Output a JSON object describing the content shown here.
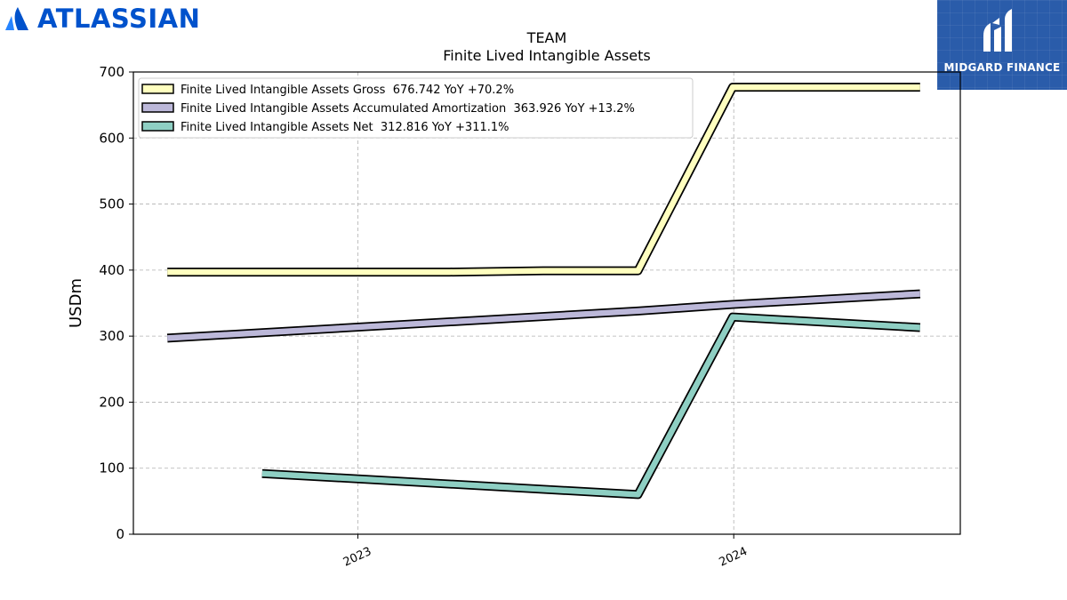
{
  "brand": {
    "left_logo_text": "ATLASSIAN",
    "right_logo_text": "MIDGARD FINANCE"
  },
  "colors": {
    "atlassian_blue": "#0052cc",
    "midgard_blue": "#2a5caa",
    "gross": "#ffffbf",
    "amortization": "#bcb8d9",
    "net": "#8ecfc3",
    "outline": "#000000"
  },
  "chart_data": {
    "type": "line",
    "title": "TEAM",
    "subtitle": "Finite Lived Intangible Assets",
    "xlabel": "",
    "ylabel": "USDm",
    "ylim": [
      0,
      700
    ],
    "yticks": [
      0,
      100,
      200,
      300,
      400,
      500,
      600,
      700
    ],
    "xlim": [
      "2022-05-28",
      "2024-08-08"
    ],
    "xticks": [
      {
        "label": "2023",
        "date": "2023-01-01"
      },
      {
        "label": "2024",
        "date": "2024-01-01"
      }
    ],
    "grid": true,
    "legend_position": "top-left",
    "series": [
      {
        "name": "Finite Lived Intangible Assets Gross",
        "legend": "Finite Lived Intangible Assets Gross  676.742 YoY +70.2%",
        "color": "#ffffbf",
        "points": [
          {
            "x": "2022-06-30",
            "y": 397
          },
          {
            "x": "2023-03-31",
            "y": 397
          },
          {
            "x": "2023-06-30",
            "y": 399
          },
          {
            "x": "2023-09-30",
            "y": 399
          },
          {
            "x": "2023-12-31",
            "y": 677
          },
          {
            "x": "2024-06-30",
            "y": 677
          }
        ]
      },
      {
        "name": "Finite Lived Intangible Assets Accumulated Amortization",
        "legend": "Finite Lived Intangible Assets Accumulated Amortization  363.926 YoY +13.2%",
        "color": "#bcb8d9",
        "points": [
          {
            "x": "2022-06-30",
            "y": 297
          },
          {
            "x": "2023-09-30",
            "y": 338
          },
          {
            "x": "2023-12-31",
            "y": 348
          },
          {
            "x": "2024-06-30",
            "y": 364
          }
        ]
      },
      {
        "name": "Finite Lived Intangible Assets Net",
        "legend": "Finite Lived Intangible Assets Net  312.816 YoY +311.1%",
        "color": "#8ecfc3",
        "points": [
          {
            "x": "2022-09-30",
            "y": 92
          },
          {
            "x": "2023-09-30",
            "y": 60
          },
          {
            "x": "2023-12-31",
            "y": 329
          },
          {
            "x": "2024-06-30",
            "y": 313
          }
        ]
      }
    ]
  }
}
